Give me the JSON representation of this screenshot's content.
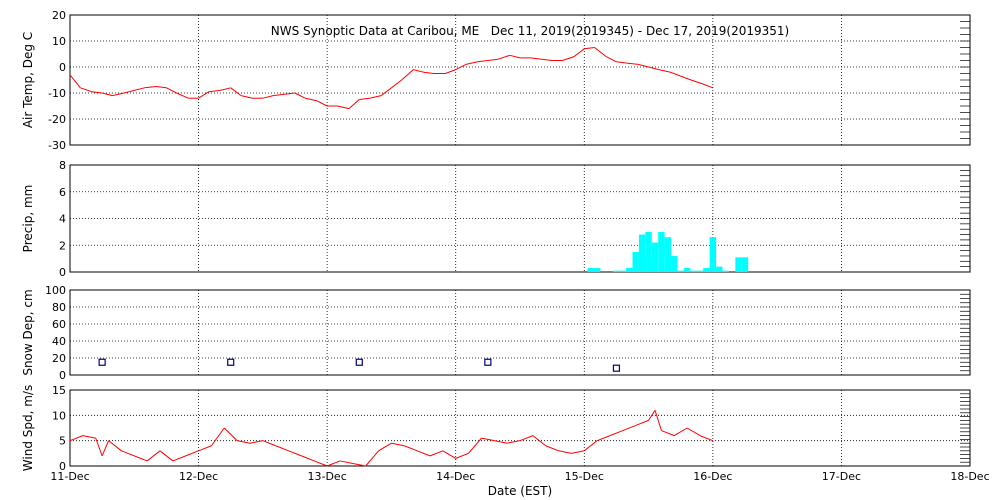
{
  "title": "NWS Synoptic Data at Caribou, ME   Dec 11, 2019(2019345) - Dec 17, 2019(2019351)",
  "x_axis": {
    "label": "Date (EST)",
    "range": [
      0,
      7
    ],
    "tick_labels": [
      "11-Dec",
      "12-Dec",
      "13-Dec",
      "14-Dec",
      "15-Dec",
      "16-Dec",
      "17-Dec",
      "18-Dec"
    ]
  },
  "colors": {
    "air_temp": "#ff0000",
    "precip": "#00ffff",
    "snow_depth": "#00008b",
    "wind_speed": "#ff0000",
    "axes": "#000000"
  },
  "chart_data": [
    {
      "type": "line",
      "ylabel": "Air Temp, Deg C",
      "ylim": [
        -30,
        20
      ],
      "yticks": [
        -30,
        -20,
        -10,
        0,
        10,
        20
      ],
      "grid": true,
      "x": [
        0,
        0.08,
        0.17,
        0.25,
        0.33,
        0.42,
        0.5,
        0.58,
        0.67,
        0.75,
        0.83,
        0.92,
        1.0,
        1.08,
        1.17,
        1.25,
        1.33,
        1.42,
        1.5,
        1.58,
        1.67,
        1.75,
        1.83,
        1.92,
        2.0,
        2.08,
        2.17,
        2.25,
        2.33,
        2.42,
        2.5,
        2.58,
        2.67,
        2.75,
        2.83,
        2.92,
        3.0,
        3.08,
        3.17,
        3.25,
        3.33,
        3.42,
        3.5,
        3.58,
        3.67,
        3.75,
        3.83,
        3.92,
        4.0,
        4.08,
        4.17,
        4.25,
        4.33,
        4.42,
        4.5,
        4.58,
        4.67,
        4.75,
        4.83,
        4.92,
        5.0
      ],
      "y": [
        -3,
        -8,
        -9.5,
        -10,
        -11,
        -10,
        -9,
        -8,
        -7.5,
        -8,
        -10,
        -12,
        -12,
        -9.5,
        -9,
        -8,
        -11,
        -12,
        -12,
        -11,
        -10.5,
        -10,
        -12,
        -13,
        -15,
        -15,
        -16,
        -12.5,
        -12,
        -11,
        -8,
        -5,
        -1,
        -2,
        -2.5,
        -2.5,
        -1,
        1,
        2,
        2.5,
        3,
        4.5,
        3.5,
        3.5,
        3,
        2.5,
        2.5,
        4,
        7,
        7.5,
        4,
        2,
        1.5,
        1,
        0,
        -1,
        -2,
        -3.5,
        -5,
        -6.5,
        -8
      ]
    },
    {
      "type": "bar",
      "ylabel": "Precip, mm",
      "ylim": [
        0,
        8
      ],
      "yticks": [
        0,
        2,
        4,
        6,
        8
      ],
      "grid": true,
      "x": [
        4.05,
        4.1,
        4.25,
        4.3,
        4.35,
        4.4,
        4.45,
        4.5,
        4.55,
        4.6,
        4.65,
        4.7,
        4.75,
        4.8,
        4.85,
        4.9,
        4.95,
        5.0,
        5.05,
        5.1,
        5.2,
        5.25
      ],
      "values": [
        0.3,
        0.3,
        0.1,
        0.1,
        0.3,
        1.5,
        2.8,
        3.0,
        2.2,
        3.0,
        2.6,
        1.2,
        0.1,
        0.3,
        0.1,
        0.1,
        0.3,
        2.6,
        0.4,
        0.1,
        1.1,
        1.1
      ]
    },
    {
      "type": "scatter",
      "ylabel": "Snow Dep, cm",
      "ylim": [
        0,
        100
      ],
      "yticks": [
        0,
        20,
        40,
        60,
        80,
        100
      ],
      "grid": true,
      "x": [
        0.25,
        1.25,
        2.25,
        3.25,
        4.25
      ],
      "y": [
        15,
        15,
        15,
        15,
        8
      ]
    },
    {
      "type": "line",
      "ylabel": "Wind Spd, m/s",
      "ylim": [
        0,
        15
      ],
      "yticks": [
        0,
        5,
        10,
        15
      ],
      "grid": true,
      "x": [
        0,
        0.1,
        0.2,
        0.25,
        0.3,
        0.4,
        0.5,
        0.6,
        0.7,
        0.8,
        0.9,
        1.0,
        1.1,
        1.2,
        1.3,
        1.4,
        1.5,
        1.6,
        1.7,
        1.8,
        1.9,
        2.0,
        2.1,
        2.2,
        2.3,
        2.4,
        2.5,
        2.6,
        2.7,
        2.8,
        2.9,
        3.0,
        3.1,
        3.2,
        3.3,
        3.4,
        3.5,
        3.6,
        3.7,
        3.8,
        3.9,
        4.0,
        4.1,
        4.2,
        4.3,
        4.4,
        4.5,
        4.55,
        4.6,
        4.7,
        4.8,
        4.9,
        5.0
      ],
      "y": [
        5,
        6,
        5.5,
        2,
        5,
        3,
        2,
        1,
        3,
        1,
        2,
        3,
        4,
        7.5,
        5,
        4.5,
        5,
        4,
        3,
        2,
        1,
        0,
        1,
        0.5,
        0,
        3,
        4.5,
        4,
        3,
        2,
        3,
        1.5,
        2.5,
        5.5,
        5,
        4.5,
        5,
        6,
        4,
        3,
        2.5,
        3,
        5,
        6,
        7,
        8,
        9,
        11,
        7,
        6,
        7.5,
        6,
        5
      ]
    }
  ]
}
